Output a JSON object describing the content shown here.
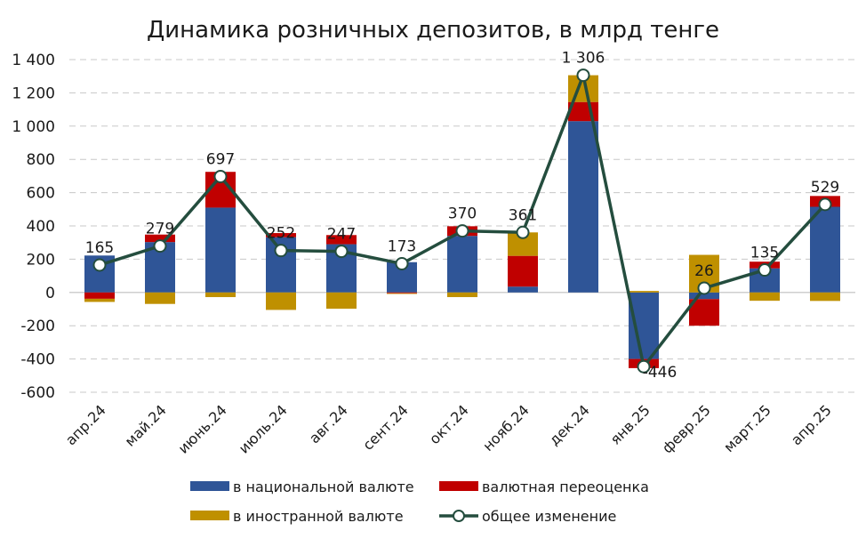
{
  "chart_data": {
    "type": "bar",
    "stacked": true,
    "title": "Динамика розничных депозитов, в млрд тенге",
    "xlabel": "",
    "ylabel": "",
    "ylim": [
      -600,
      1400
    ],
    "yticks": [
      -600,
      -400,
      -200,
      0,
      200,
      400,
      600,
      800,
      1000,
      1200,
      1400
    ],
    "ytick_labels": [
      "-600",
      "-400",
      "-200",
      "0",
      "200",
      "400",
      "600",
      "800",
      "1 000",
      "1 200",
      "1 400"
    ],
    "grid": true,
    "legend_position": "bottom",
    "categories": [
      "апр.24",
      "май.24",
      "июнь.24",
      "июль.24",
      "авг.24",
      "сент.24",
      "окт.24",
      "нояб.24",
      "дек.24",
      "янв.25",
      "февр.25",
      "март.25",
      "апр.25"
    ],
    "series": [
      {
        "name": "в национальной валюте",
        "type": "bar",
        "color": "#2f5597",
        "values": [
          222,
          303,
          510,
          332,
          290,
          182,
          340,
          35,
          1030,
          -400,
          -40,
          145,
          515
        ]
      },
      {
        "name": "валютная переоценка",
        "type": "bar",
        "color": "#c00000",
        "values": [
          -38,
          45,
          215,
          25,
          55,
          -5,
          58,
          185,
          115,
          -55,
          -160,
          40,
          65
        ]
      },
      {
        "name": "в иностранной валюте",
        "type": "bar",
        "color": "#bf9000",
        "values": [
          -19,
          -69,
          -28,
          -105,
          -98,
          -4,
          -28,
          141,
          161,
          9,
          226,
          -50,
          -51
        ]
      },
      {
        "name": "общее изменение",
        "type": "line",
        "color": "#244d3e",
        "values": [
          165,
          279,
          697,
          252,
          247,
          173,
          370,
          361,
          1306,
          -446,
          26,
          135,
          529
        ],
        "labels": [
          "165",
          "279",
          "697",
          "252",
          "247",
          "173",
          "370",
          "361",
          "1 306",
          "-446",
          "26",
          "135",
          "529"
        ]
      }
    ],
    "legend": [
      "в национальной валюте",
      "валютная переоценка",
      "в иностранной валюте",
      "общее изменение"
    ]
  }
}
